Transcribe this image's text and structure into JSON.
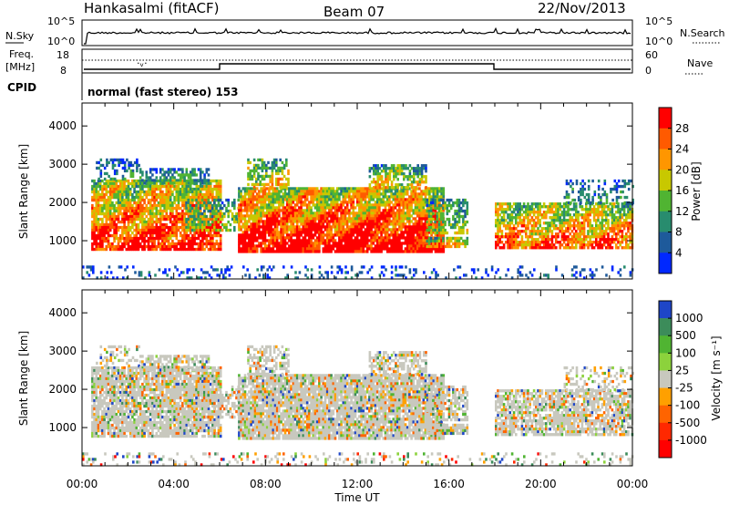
{
  "header": {
    "station": "Hankasalmi (fitACF)",
    "beam": "Beam 07",
    "date": "22/Nov/2013"
  },
  "noise_panel": {
    "left_label": "N.Sky",
    "right_label": "N.Search",
    "left_ticks": [
      "10^5",
      "10^0"
    ],
    "right_ticks": [
      "10^5",
      "10^0"
    ]
  },
  "freq_panel": {
    "left_label_1": "Freq.",
    "left_label_2": "[MHz]",
    "left_ticks": [
      "18",
      "8"
    ],
    "right_label": "Nave",
    "right_ticks": [
      "60",
      "0"
    ]
  },
  "cpid": {
    "label": "CPID",
    "mode": "normal (fast stereo) 153"
  },
  "chart_data": [
    {
      "type": "heatmap",
      "title": "",
      "ylabel": "Slant Range [km]",
      "xlabel": "",
      "x_range_hours": [
        0,
        24
      ],
      "ylim": [
        0,
        4600
      ],
      "yticks": [
        1000,
        2000,
        3000,
        4000
      ],
      "colorbar": {
        "label": "Power [dB]",
        "ticks": [
          "28",
          "24",
          "20",
          "16",
          "12",
          "8",
          "4"
        ],
        "colors": [
          "#ff0000",
          "#ff5a00",
          "#ff9600",
          "#c8c800",
          "#50b432",
          "#288c6e",
          "#1e5a9b",
          "#0028ff"
        ]
      }
    },
    {
      "type": "heatmap",
      "title": "",
      "ylabel": "Slant Range [km]",
      "xlabel": "Time UT",
      "x_range_hours": [
        0,
        24
      ],
      "xticks": [
        "00:00",
        "04:00",
        "08:00",
        "12:00",
        "16:00",
        "20:00",
        "00:00"
      ],
      "ylim": [
        0,
        4600
      ],
      "yticks": [
        1000,
        2000,
        3000,
        4000
      ],
      "colorbar": {
        "label": "Velocity [m s⁻¹]",
        "ticks": [
          "1000",
          "500",
          "100",
          "25",
          "-25",
          "-100",
          "-500",
          "-1000"
        ],
        "colors": [
          "#1e46c8",
          "#3c8c5a",
          "#50b432",
          "#8cd23c",
          "#c8c8be",
          "#ffa000",
          "#ff6400",
          "#ff2800",
          "#ff0000"
        ]
      }
    }
  ]
}
